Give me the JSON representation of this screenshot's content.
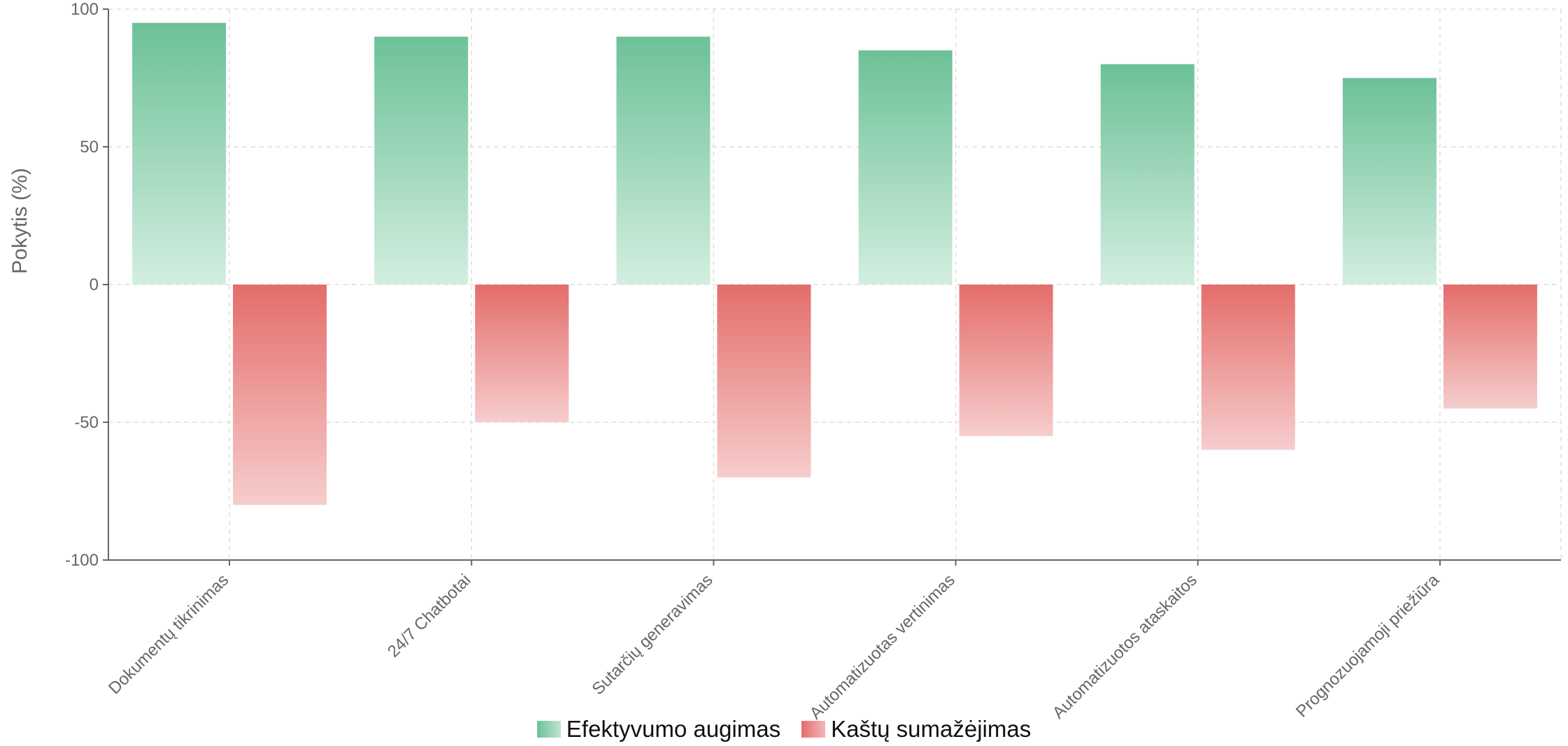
{
  "chart_data": {
    "type": "bar",
    "ylabel": "Pokytis (%)",
    "ylim": [
      -100,
      100
    ],
    "yticks": [
      100,
      50,
      0,
      -50,
      -100
    ],
    "grid": true,
    "legend_position": "bottom-center",
    "categories": [
      "Dokumentų tikrinimas",
      "24/7 Chatbotai",
      "Sutarčių generavimas",
      "Automatizuotas vertinimas",
      "Automatizuotos ataskaitos",
      "Prognozuojamoji priežiūra"
    ],
    "series": [
      {
        "name": "Efektyvumo augimas",
        "values": [
          95,
          90,
          90,
          85,
          80,
          75
        ],
        "color": "#6cc197"
      },
      {
        "name": "Kaštų sumažėjimas",
        "values": [
          -80,
          -50,
          -70,
          -55,
          -60,
          -45
        ],
        "color": "#e46d6a"
      }
    ]
  }
}
